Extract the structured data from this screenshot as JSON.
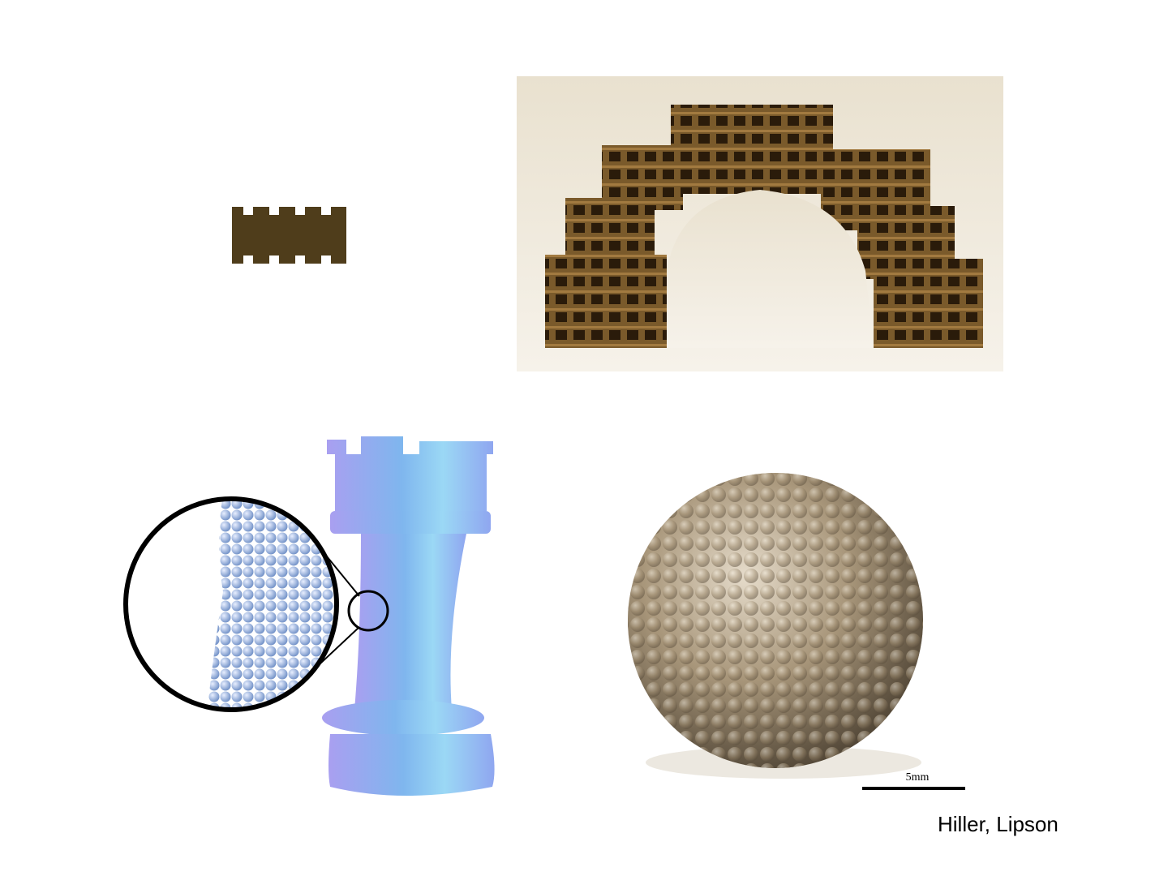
{
  "credit": "Hiller, Lipson",
  "scale_bar": {
    "label": "5mm"
  },
  "colors": {
    "cardboard": "#4f3d1b",
    "arch_bg": "#efe8d8",
    "rook_blue": "#8fb2f2",
    "metal": "#a8967a"
  },
  "icons": {
    "slot-piece": "slotted-cardboard-piece-illustration",
    "arch": "cardboard-arch-photo",
    "rook": "chess-rook-illustration",
    "sphere": "metal-sphere-photo"
  }
}
